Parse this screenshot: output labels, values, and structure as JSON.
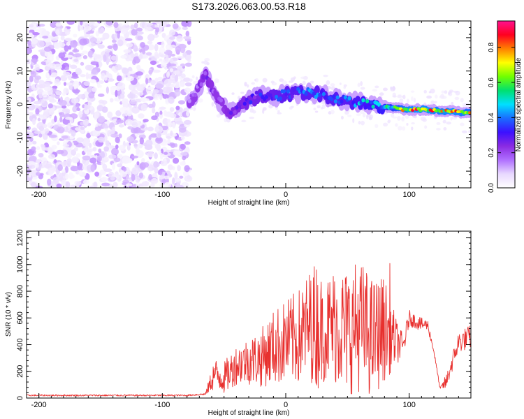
{
  "title": "S173.2026.063.00.53.R18",
  "colors": {
    "background": "#ffffff",
    "axis": "#000000",
    "snr_line": "#e8302e",
    "colorbar_stops": [
      "#ffffff",
      "#e8d8ff",
      "#b070ff",
      "#8a2be2",
      "#3b10ff",
      "#1a6cff",
      "#00e0ff",
      "#00e070",
      "#70ff00",
      "#ffff00",
      "#ff8000",
      "#ff0020",
      "#ff1090"
    ]
  },
  "chart_data": [
    {
      "type": "heatmap",
      "xlabel": "Height of straight line (km)",
      "ylabel": "Frequency (Hz)",
      "xlim": [
        -210,
        150
      ],
      "ylim": [
        -25,
        25
      ],
      "x_ticks": [
        -200,
        -100,
        0,
        100
      ],
      "y_ticks": [
        -20,
        -10,
        0,
        10,
        20
      ],
      "x_tick_labels": [
        "-200",
        "-100",
        "0",
        "100"
      ],
      "y_tick_labels": [
        "-20",
        "-10",
        "0",
        "10",
        "20"
      ],
      "colorbar": {
        "label": "Normalized spectral amplitude",
        "range": [
          0,
          0.95
        ],
        "ticks": [
          0,
          0.2,
          0.4,
          0.6,
          0.8
        ],
        "tick_labels": [
          "0.0",
          "0.2",
          "0.4",
          "0.6",
          "0.8"
        ]
      },
      "noise_region_x": [
        -210,
        -78
      ],
      "signal_track": {
        "x": [
          -78,
          -70,
          -64,
          -58,
          -52,
          -46,
          -40,
          -30,
          -20,
          -10,
          0,
          10,
          20,
          30,
          40,
          50,
          60,
          70,
          80,
          88,
          95,
          105,
          115,
          125,
          135,
          145,
          150
        ],
        "freq": [
          1,
          5,
          9,
          3,
          0,
          -3,
          -1,
          1,
          3,
          2,
          3,
          3.5,
          3.5,
          3,
          2,
          1,
          0.5,
          -0.5,
          -0.5,
          -1,
          -1.5,
          -1.5,
          -1.5,
          -2,
          -2,
          -2.5,
          -2.5
        ],
        "amplitude": [
          0.2,
          0.25,
          0.3,
          0.25,
          0.25,
          0.3,
          0.3,
          0.35,
          0.38,
          0.4,
          0.45,
          0.45,
          0.45,
          0.45,
          0.45,
          0.45,
          0.5,
          0.55,
          0.6,
          0.7,
          0.85,
          0.9,
          0.9,
          0.85,
          0.9,
          0.85,
          0.8
        ]
      }
    },
    {
      "type": "line",
      "xlabel": "Height of straight line (km)",
      "ylabel": "SNR (10 * v/v)",
      "xlim": [
        -210,
        150
      ],
      "ylim": [
        0,
        1250
      ],
      "x_ticks": [
        -200,
        -100,
        0,
        100
      ],
      "y_ticks": [
        0,
        200,
        400,
        600,
        800,
        1000,
        1200
      ],
      "x_tick_labels": [
        "-200",
        "-100",
        "0",
        "100"
      ],
      "y_tick_labels": [
        "0",
        "200",
        "400",
        "600",
        "800",
        "1000",
        "1200"
      ],
      "series": [
        {
          "name": "SNR",
          "x": [
            -210,
            -80,
            -65,
            -58,
            -50,
            -40,
            -30,
            -20,
            -10,
            0,
            10,
            20,
            25,
            30,
            40,
            50,
            60,
            70,
            80,
            90,
            95,
            100,
            110,
            115,
            120,
            125,
            130,
            140,
            150
          ],
          "mean": [
            20,
            20,
            30,
            180,
            150,
            250,
            280,
            300,
            380,
            420,
            450,
            550,
            550,
            500,
            550,
            500,
            550,
            450,
            520,
            420,
            380,
            600,
            550,
            550,
            350,
            70,
            120,
            420,
            460
          ],
          "amp": [
            6,
            6,
            8,
            120,
            120,
            150,
            180,
            220,
            280,
            320,
            360,
            420,
            500,
            380,
            450,
            480,
            500,
            450,
            400,
            160,
            100,
            60,
            50,
            40,
            20,
            10,
            60,
            80,
            90
          ]
        }
      ]
    }
  ]
}
